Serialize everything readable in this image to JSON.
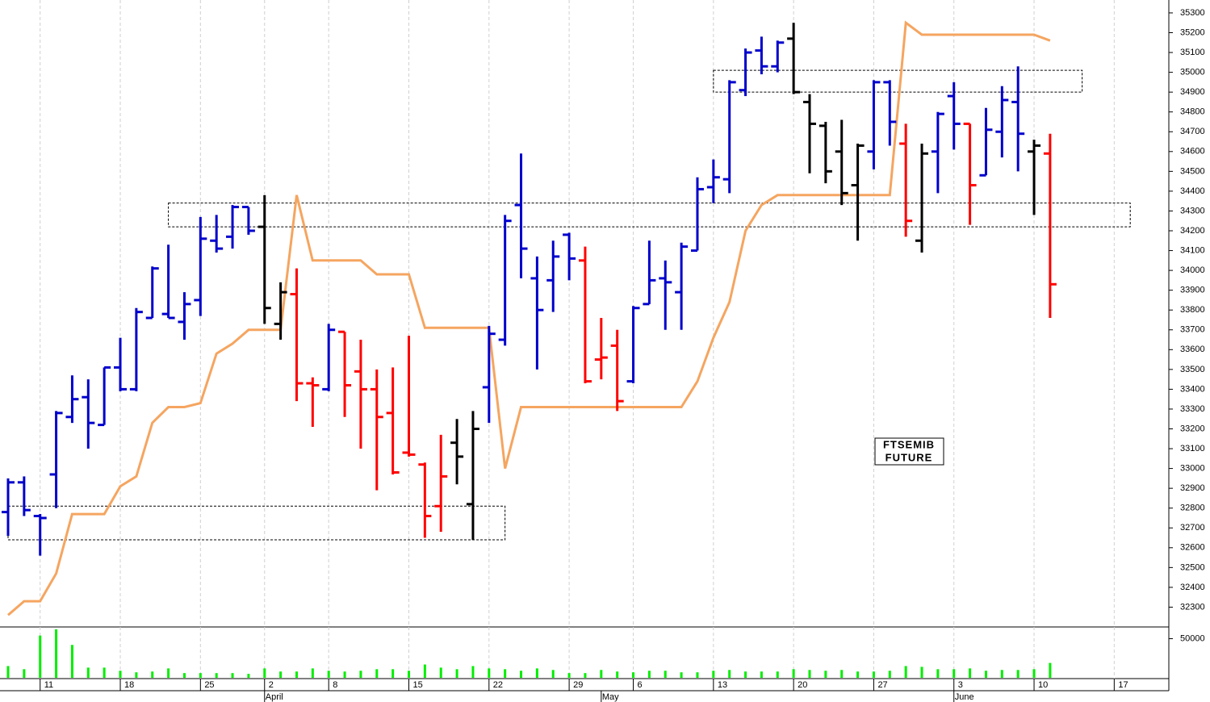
{
  "chart_data": [
    {
      "type": "ohlc",
      "title_lines": [
        "FTSEMIB",
        "FUTURE"
      ],
      "categories": [
        null,
        null,
        "11",
        null,
        null,
        null,
        null,
        "18",
        null,
        null,
        null,
        null,
        "25",
        null,
        null,
        null,
        "2",
        null,
        null,
        null,
        "8",
        null,
        null,
        null,
        null,
        "15",
        null,
        null,
        null,
        null,
        "22",
        null,
        null,
        null,
        null,
        "29",
        null,
        null,
        null,
        "6",
        null,
        null,
        null,
        null,
        "13",
        null,
        null,
        null,
        null,
        "20",
        null,
        null,
        null,
        null,
        "27",
        null,
        null,
        null,
        null,
        "3",
        null,
        null,
        null,
        null,
        "10",
        null,
        null,
        null,
        null,
        "17",
        null,
        null,
        null
      ],
      "month_labels": [
        null,
        null,
        null,
        null,
        null,
        null,
        null,
        null,
        null,
        null,
        null,
        null,
        null,
        null,
        null,
        null,
        "April",
        null,
        null,
        null,
        null,
        null,
        null,
        null,
        null,
        null,
        null,
        null,
        null,
        null,
        null,
        null,
        null,
        null,
        null,
        null,
        null,
        "May",
        null,
        null,
        null,
        null,
        null,
        null,
        null,
        null,
        null,
        null,
        null,
        null,
        null,
        null,
        null,
        null,
        null,
        null,
        null,
        null,
        null,
        "June",
        null,
        null,
        null,
        null,
        null,
        null,
        null,
        null,
        null,
        null,
        null,
        null,
        null
      ],
      "open": [
        32780,
        32930,
        32760,
        32970,
        33260,
        33360,
        33220,
        33510,
        33400,
        33760,
        33780,
        33740,
        33850,
        34150,
        34170,
        34320,
        34220,
        33730,
        33880,
        33430,
        33400,
        33690,
        33490,
        33400,
        33280,
        33080,
        33020,
        32810,
        33130,
        32820,
        33410,
        33650,
        34330,
        33960,
        33950,
        34180,
        34050,
        33550,
        33620,
        33440,
        33830,
        33960,
        33890,
        34100,
        34420,
        34460,
        34910,
        35110,
        35030,
        35170,
        34850,
        34730,
        34600,
        34430,
        34600,
        34950,
        34640,
        34150,
        34600,
        34880,
        34740,
        34480,
        34700,
        34850,
        34600,
        34590,
        null,
        null,
        null,
        null,
        null,
        null,
        null
      ],
      "high": [
        32950,
        32960,
        32770,
        33290,
        33470,
        33450,
        33510,
        33660,
        33810,
        34020,
        34130,
        33890,
        34270,
        34280,
        34330,
        34320,
        34380,
        33940,
        34010,
        33460,
        33730,
        33690,
        33650,
        33500,
        33510,
        33670,
        33030,
        33170,
        33250,
        33290,
        33720,
        34280,
        34590,
        34070,
        34150,
        34190,
        34120,
        33760,
        33700,
        33820,
        34150,
        34050,
        34140,
        34470,
        34560,
        34960,
        35120,
        35180,
        35160,
        35250,
        34890,
        34750,
        34760,
        34640,
        34960,
        34960,
        34740,
        34640,
        34800,
        34950,
        34740,
        34820,
        34930,
        35030,
        34660,
        34690,
        null,
        null,
        null,
        null,
        null,
        null,
        null
      ],
      "low": [
        32660,
        32760,
        32560,
        32800,
        33230,
        33100,
        33220,
        33390,
        33390,
        33760,
        33760,
        33650,
        33770,
        34090,
        34110,
        34180,
        33730,
        33650,
        33340,
        33210,
        33390,
        33260,
        33100,
        32890,
        32970,
        33060,
        32650,
        32680,
        32920,
        32640,
        33230,
        33620,
        33960,
        33500,
        33790,
        33950,
        33430,
        33450,
        33290,
        33430,
        33830,
        33700,
        33700,
        34100,
        34340,
        34390,
        34880,
        34990,
        35000,
        34890,
        34490,
        34440,
        34330,
        34150,
        34510,
        34630,
        34170,
        34090,
        34390,
        34610,
        34230,
        34480,
        34570,
        34500,
        34280,
        33760,
        null,
        null,
        null,
        null,
        null,
        null,
        null
      ],
      "close": [
        32930,
        32790,
        32750,
        33280,
        33350,
        33230,
        33510,
        33400,
        33790,
        34010,
        33760,
        33830,
        34160,
        34110,
        34320,
        34200,
        33810,
        33890,
        33430,
        33420,
        33700,
        33420,
        33400,
        33260,
        32980,
        33070,
        32760,
        32960,
        33060,
        33200,
        33680,
        34250,
        34110,
        33800,
        34070,
        34060,
        33440,
        33560,
        33340,
        33810,
        33950,
        33940,
        34120,
        34410,
        34470,
        34950,
        35100,
        35030,
        35150,
        34900,
        34740,
        34500,
        34390,
        34630,
        34950,
        34750,
        34250,
        34590,
        34790,
        34740,
        34430,
        34710,
        34860,
        34690,
        34630,
        33930,
        null,
        null,
        null,
        null,
        null,
        null,
        null
      ],
      "trend": [
        "up",
        "up",
        "up",
        "up",
        "up",
        "up",
        "up",
        "up",
        "up",
        "up",
        "up",
        "up",
        "up",
        "up",
        "up",
        "up",
        "flat",
        "flat",
        "down",
        "down",
        "up",
        "down",
        "down",
        "down",
        "down",
        "down",
        "down",
        "down",
        "flat",
        "flat",
        "up",
        "up",
        "up",
        "up",
        "up",
        "up",
        "down",
        "down",
        "down",
        "up",
        "up",
        "up",
        "up",
        "up",
        "up",
        "up",
        "up",
        "up",
        "up",
        "flat",
        "flat",
        "flat",
        "flat",
        "flat",
        "up",
        "up",
        "down",
        "flat",
        "up",
        "up",
        "down",
        "up",
        "up",
        "up",
        "flat",
        "down",
        null,
        null,
        null,
        null,
        null,
        null,
        null
      ],
      "palette": {
        "up": "#0000cc",
        "down": "#ff0000",
        "flat": "#000000"
      },
      "line": {
        "color": "#f5a560",
        "values": [
          32260,
          32330,
          32330,
          32470,
          32770,
          32770,
          32770,
          32910,
          32960,
          33230,
          33310,
          33310,
          33330,
          33580,
          33630,
          33700,
          33700,
          33700,
          34380,
          34050,
          34050,
          34050,
          34050,
          33980,
          33980,
          33980,
          33710,
          33710,
          33710,
          33710,
          33710,
          33000,
          33310,
          33310,
          33310,
          33310,
          33310,
          33310,
          33310,
          33310,
          33310,
          33310,
          33310,
          33440,
          33660,
          33840,
          34200,
          34330,
          34380,
          34380,
          34380,
          34380,
          34380,
          34380,
          34380,
          34380,
          35250,
          35190,
          35190,
          35190,
          35190,
          35190,
          35190,
          35190,
          35190,
          35160,
          null,
          null,
          null,
          null,
          null,
          null,
          null
        ]
      },
      "zones": [
        {
          "from": 0,
          "to": 31,
          "top": 32810,
          "bottom": 32640
        },
        {
          "from": 10,
          "to": 70,
          "top": 34340,
          "bottom": 34220
        },
        {
          "from": 44,
          "to": 67,
          "top": 35010,
          "bottom": 34900
        }
      ],
      "ylim": [
        32200,
        35365
      ],
      "yticks": [
        32300,
        32400,
        32500,
        32600,
        32700,
        32800,
        32900,
        33000,
        33100,
        33200,
        33300,
        33400,
        33500,
        33600,
        33700,
        33800,
        33900,
        34000,
        34100,
        34200,
        34300,
        34400,
        34500,
        34600,
        34700,
        34800,
        34900,
        35000,
        35100,
        35200,
        35300
      ],
      "xgrid": true
    },
    {
      "type": "bar",
      "color": "#00ee00",
      "values": [
        15000,
        11000,
        54000,
        62000,
        42000,
        13000,
        13000,
        9000,
        7000,
        8000,
        12000,
        6000,
        6000,
        6000,
        6000,
        5000,
        12000,
        8000,
        8000,
        12000,
        9000,
        8000,
        9000,
        11000,
        11000,
        9000,
        17000,
        13000,
        11000,
        15000,
        12000,
        11000,
        9000,
        12000,
        10000,
        6000,
        6000,
        10000,
        8000,
        7000,
        9000,
        9000,
        7000,
        7000,
        9000,
        10000,
        8000,
        8000,
        8000,
        11000,
        10000,
        9000,
        10000,
        8000,
        8000,
        9000,
        15000,
        14000,
        11000,
        11000,
        12000,
        9000,
        10000,
        10000,
        11000,
        19000,
        null,
        null,
        null,
        null,
        null,
        null,
        null
      ],
      "ylim": [
        0,
        65000
      ],
      "yticks": [
        50000
      ]
    }
  ]
}
